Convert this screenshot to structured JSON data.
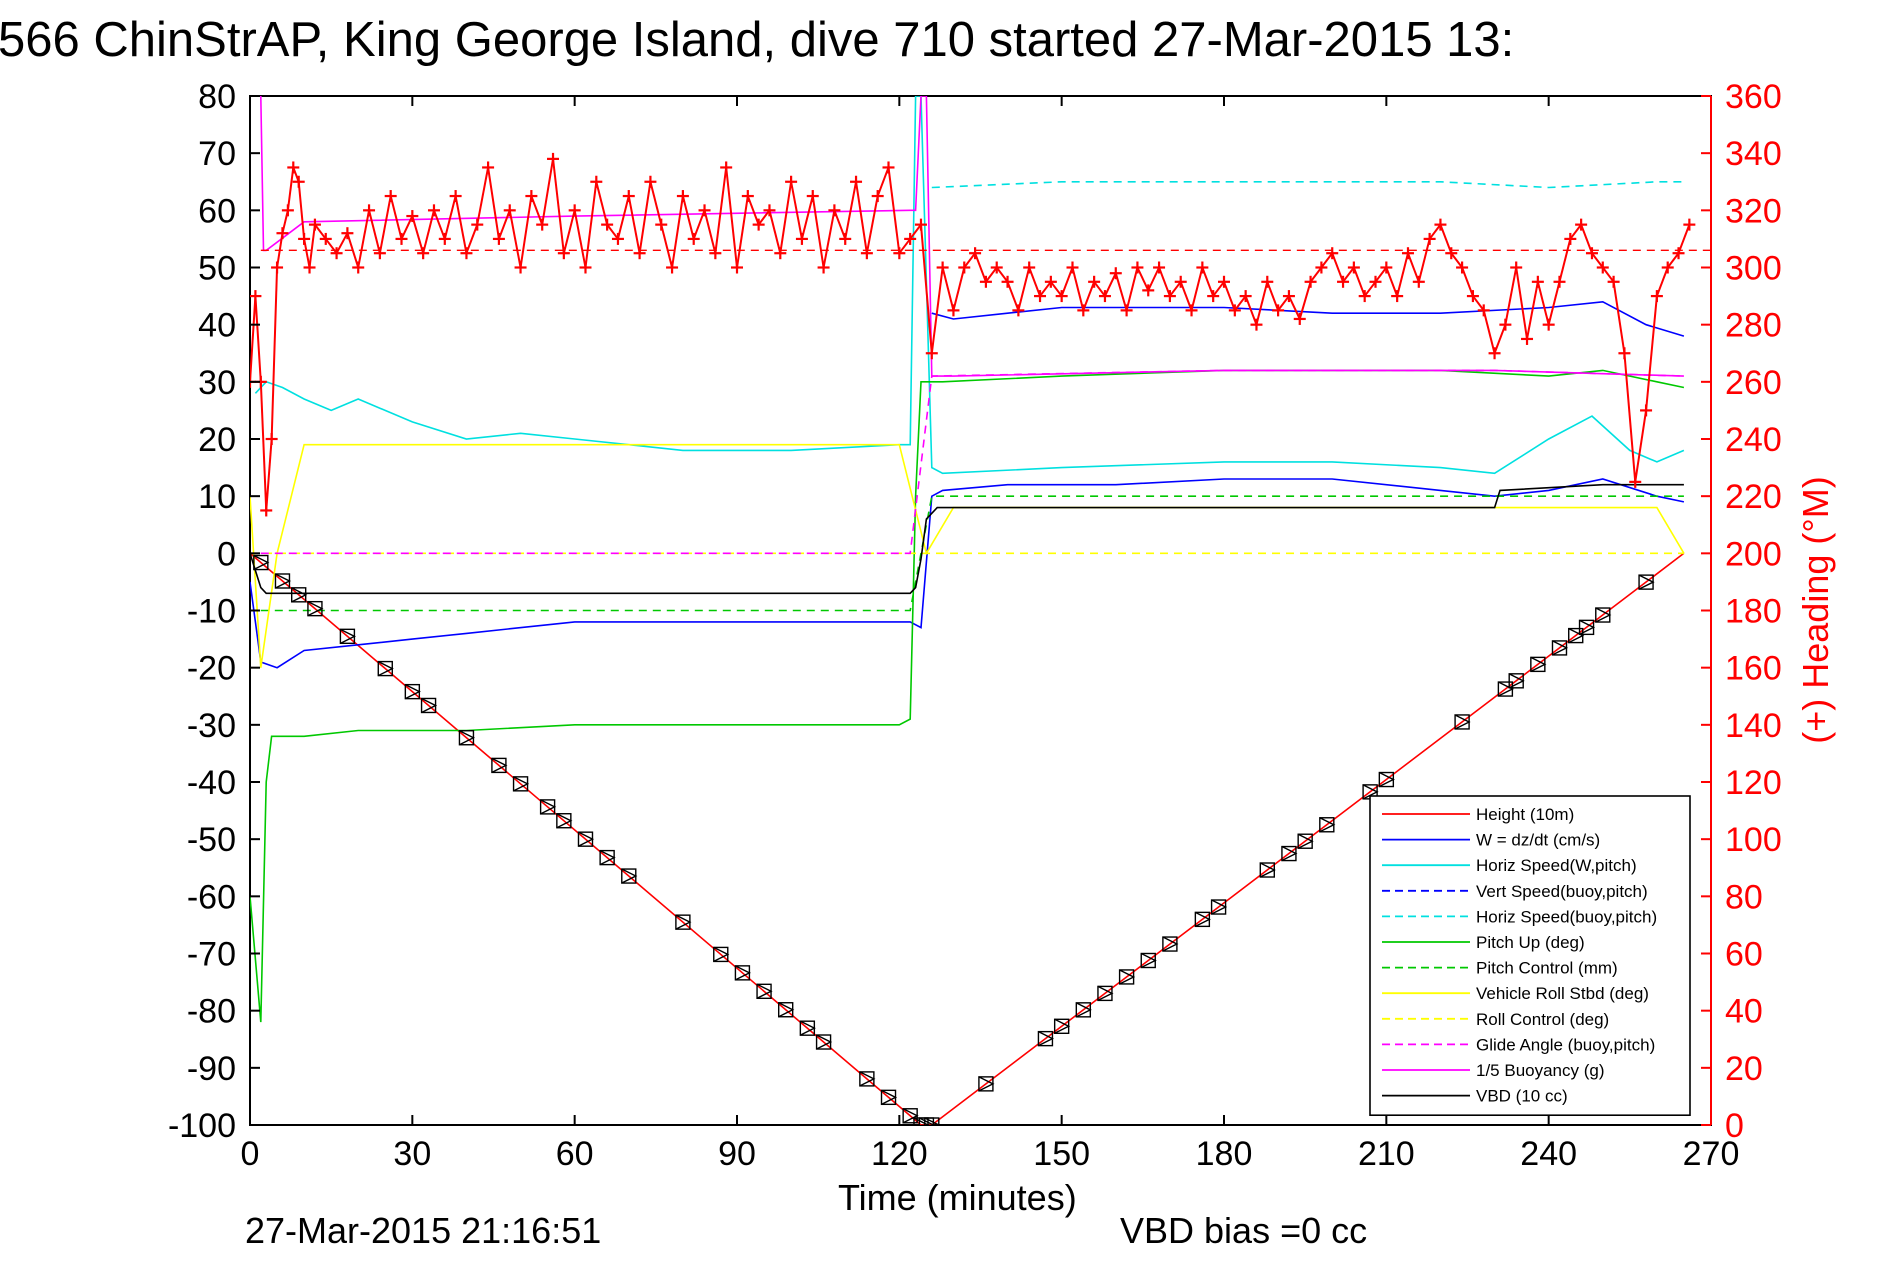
{
  "title": "566 ChinStrAP, King George Island, dive 710 started 27-Mar-2015 13:",
  "footer": {
    "timestamp": "27-Mar-2015 21:16:51",
    "vbd_bias": "VBD bias =0 cc"
  },
  "chart_data": {
    "type": "line",
    "title": "566 ChinStrAP, King George Island, dive 710 started 27-Mar-2015 13:",
    "xlabel": "Time (minutes)",
    "ylabel_right": "(+) Heading (°M)",
    "xlim": [
      0,
      270
    ],
    "ylim_left": [
      -100,
      80
    ],
    "ylim_right": [
      0,
      360
    ],
    "x_ticks": [
      "0",
      "30",
      "60",
      "90",
      "120",
      "150",
      "180",
      "210",
      "240",
      "270"
    ],
    "y_ticks_left": [
      "80",
      "70",
      "60",
      "50",
      "40",
      "30",
      "20",
      "10",
      "0",
      "-10",
      "-20",
      "-30",
      "-40",
      "-50",
      "-60",
      "-70",
      "-80",
      "-90",
      "-100"
    ],
    "y_ticks_right": [
      "360",
      "340",
      "320",
      "300",
      "280",
      "260",
      "240",
      "220",
      "200",
      "180",
      "160",
      "140",
      "120",
      "100",
      "80",
      "60",
      "40",
      "20",
      "0"
    ],
    "grid": false,
    "legend_position": "bottom-right",
    "series": [
      {
        "name": "Height (10m)",
        "color": "#ff0000",
        "style": "solid",
        "axis": "left",
        "x": [
          0,
          124,
          126,
          265
        ],
        "y": [
          0,
          -100,
          -100,
          0
        ]
      },
      {
        "name": "W = dz/dt (cm/s)",
        "color": "#0000ff",
        "style": "solid",
        "axis": "left",
        "x": [
          0,
          2,
          5,
          10,
          20,
          30,
          40,
          60,
          90,
          120,
          122,
          124,
          126,
          128,
          140,
          160,
          180,
          200,
          220,
          230,
          240,
          250,
          260,
          265
        ],
        "y": [
          -5,
          -19,
          -20,
          -17,
          -16,
          -15,
          -14,
          -12,
          -12,
          -12,
          -12,
          -13,
          10,
          11,
          12,
          12,
          13,
          13,
          11,
          10,
          11,
          13,
          10,
          9
        ]
      },
      {
        "name": "W = dz/dt (cm/s)",
        "color": "#0000ff",
        "style": "solid",
        "axis": "left",
        "x": [
          126,
          130,
          140,
          150,
          160,
          180,
          200,
          220,
          240,
          250,
          258,
          265
        ],
        "y": [
          42,
          41,
          42,
          43,
          43,
          43,
          42,
          42,
          43,
          44,
          40,
          38
        ]
      },
      {
        "name": "Horiz Speed(W,pitch)",
        "color": "#00e0e0",
        "style": "solid",
        "axis": "left",
        "x": [
          1,
          3,
          6,
          10,
          15,
          20,
          30,
          40,
          50,
          60,
          80,
          100,
          120,
          122,
          123,
          124,
          126,
          128,
          150,
          180,
          200,
          220,
          230,
          240,
          248,
          255,
          260,
          265
        ],
        "y": [
          28,
          30,
          29,
          27,
          25,
          27,
          23,
          20,
          21,
          20,
          18,
          18,
          19,
          19,
          80,
          80,
          15,
          14,
          15,
          16,
          16,
          15,
          14,
          20,
          24,
          18,
          16,
          18
        ]
      },
      {
        "name": "Vert Speed(buoy,pitch)",
        "color": "#0000ff",
        "style": "dashed",
        "axis": "left",
        "x": [],
        "y": []
      },
      {
        "name": "Horiz Speed(buoy,pitch)",
        "color": "#00e0e0",
        "style": "dashed",
        "axis": "left",
        "x": [
          126,
          150,
          180,
          200,
          220,
          240,
          260,
          265
        ],
        "y": [
          64,
          65,
          65,
          65,
          65,
          64,
          65,
          65
        ]
      },
      {
        "name": "Pitch Up (deg)",
        "color": "#00c800",
        "style": "solid",
        "axis": "left",
        "x": [
          0,
          2,
          3,
          4,
          5,
          10,
          20,
          40,
          60,
          90,
          120,
          122,
          123,
          124,
          126,
          128,
          150,
          180,
          200,
          220,
          240,
          250,
          260,
          265
        ],
        "y": [
          -60,
          -82,
          -40,
          -32,
          -32,
          -32,
          -31,
          -31,
          -30,
          -30,
          -30,
          -29,
          10,
          30,
          30,
          30,
          31,
          32,
          32,
          32,
          31,
          32,
          30,
          29
        ]
      },
      {
        "name": "Pitch Control (mm)",
        "color": "#00c800",
        "style": "dashed",
        "axis": "left",
        "x": [
          2,
          10,
          60,
          122,
          126,
          180,
          230,
          265
        ],
        "y": [
          -10,
          -10,
          -10,
          -10,
          10,
          10,
          10,
          10
        ]
      },
      {
        "name": "Vehicle Roll Stbd (deg)",
        "color": "#ffff00",
        "style": "solid",
        "axis": "left",
        "x": [
          0,
          2,
          5,
          10,
          20,
          40,
          60,
          80,
          100,
          120,
          125,
          130,
          150,
          180,
          200,
          220,
          240,
          260,
          265
        ],
        "y": [
          10,
          -20,
          0,
          19,
          19,
          19,
          19,
          19,
          19,
          19,
          0,
          8,
          8,
          8,
          8,
          8,
          8,
          8,
          0
        ]
      },
      {
        "name": "Roll Control (deg)",
        "color": "#ffff00",
        "style": "dashed",
        "axis": "left",
        "x": [
          0,
          2,
          10,
          60,
          120,
          126,
          180,
          224,
          230,
          250,
          265
        ],
        "y": [
          0,
          0,
          0,
          0,
          0,
          0,
          0,
          0,
          0,
          0,
          0
        ]
      },
      {
        "name": "Glide Angle (buoy,pitch)",
        "color": "#ff00ff",
        "style": "dashed",
        "axis": "left",
        "x": [
          2,
          60,
          122,
          126,
          180,
          230,
          265
        ],
        "y": [
          0,
          0,
          0,
          31,
          32,
          32,
          31
        ]
      },
      {
        "name": "1/5 Buoyancy (g)",
        "color": "#ff00ff",
        "style": "solid",
        "axis": "left",
        "x": [
          2,
          2.5,
          3,
          10,
          60,
          122,
          123,
          124,
          125,
          126,
          130,
          180,
          230,
          265
        ],
        "y": [
          80,
          53,
          53,
          58,
          59,
          60,
          60,
          80,
          80,
          31,
          31,
          32,
          32,
          31
        ]
      },
      {
        "name": "VBD (10 cc)",
        "color": "#000000",
        "style": "solid",
        "axis": "left",
        "x": [
          0,
          1,
          2,
          3,
          10,
          60,
          120,
          122,
          123,
          124,
          125,
          126,
          127,
          128,
          180,
          220,
          230,
          231,
          250,
          265
        ],
        "y": [
          0,
          -3,
          -6,
          -7,
          -7,
          -7,
          -7,
          -7,
          -6,
          -1,
          6,
          7,
          8,
          8,
          8,
          8,
          8,
          11,
          12,
          12
        ]
      },
      {
        "name": "Heading",
        "color": "#ff0000",
        "style": "plus-markers",
        "axis": "right",
        "x": [
          0,
          1,
          2,
          3,
          4,
          5,
          6,
          7,
          8,
          9,
          10,
          11,
          12,
          14,
          16,
          18,
          20,
          22,
          24,
          26,
          28,
          30,
          32,
          34,
          36,
          38,
          40,
          42,
          44,
          46,
          48,
          50,
          52,
          54,
          56,
          58,
          60,
          62,
          64,
          66,
          68,
          70,
          72,
          74,
          76,
          78,
          80,
          82,
          84,
          86,
          88,
          90,
          92,
          94,
          96,
          98,
          100,
          102,
          104,
          106,
          108,
          110,
          112,
          114,
          116,
          118,
          120,
          122,
          124,
          126,
          128,
          130,
          132,
          134,
          136,
          138,
          140,
          142,
          144,
          146,
          148,
          150,
          152,
          154,
          156,
          158,
          160,
          162,
          164,
          166,
          168,
          170,
          172,
          174,
          176,
          178,
          180,
          182,
          184,
          186,
          188,
          190,
          192,
          194,
          196,
          198,
          200,
          202,
          204,
          206,
          208,
          210,
          212,
          214,
          216,
          218,
          220,
          222,
          224,
          226,
          228,
          230,
          232,
          234,
          236,
          238,
          240,
          242,
          244,
          246,
          248,
          250,
          252,
          254,
          256,
          258,
          260,
          262,
          264,
          266
        ],
        "y": [
          260,
          290,
          260,
          215,
          240,
          300,
          312,
          320,
          335,
          330,
          310,
          300,
          315,
          310,
          305,
          312,
          300,
          320,
          305,
          325,
          310,
          318,
          305,
          320,
          310,
          325,
          305,
          315,
          335,
          310,
          320,
          300,
          325,
          315,
          338,
          305,
          320,
          300,
          330,
          315,
          310,
          325,
          305,
          330,
          315,
          300,
          325,
          310,
          320,
          305,
          335,
          300,
          325,
          315,
          320,
          305,
          330,
          310,
          325,
          300,
          320,
          310,
          330,
          305,
          325,
          335,
          305,
          310,
          315,
          270,
          300,
          285,
          300,
          305,
          295,
          300,
          295,
          285,
          300,
          290,
          295,
          290,
          300,
          285,
          295,
          290,
          298,
          285,
          300,
          292,
          300,
          290,
          295,
          285,
          300,
          290,
          295,
          285,
          290,
          280,
          295,
          285,
          290,
          282,
          295,
          300,
          305,
          295,
          300,
          290,
          295,
          300,
          290,
          305,
          295,
          310,
          315,
          305,
          300,
          290,
          285,
          270,
          280,
          300,
          275,
          295,
          280,
          295,
          310,
          315,
          305,
          300,
          295,
          270,
          225,
          250,
          290,
          300,
          305,
          315
        ]
      }
    ]
  },
  "legend": {
    "items": [
      {
        "label": "Height (10m)",
        "color": "#ff0000",
        "style": "solid"
      },
      {
        "label": "W = dz/dt (cm/s)",
        "color": "#0000ff",
        "style": "solid"
      },
      {
        "label": "Horiz Speed(W,pitch)",
        "color": "#00e0e0",
        "style": "solid"
      },
      {
        "label": "Vert Speed(buoy,pitch)",
        "color": "#0000ff",
        "style": "dashed"
      },
      {
        "label": "Horiz Speed(buoy,pitch)",
        "color": "#00e0e0",
        "style": "dashed"
      },
      {
        "label": "Pitch Up (deg)",
        "color": "#00c800",
        "style": "solid"
      },
      {
        "label": "Pitch Control (mm)",
        "color": "#00c800",
        "style": "dashed"
      },
      {
        "label": "Vehicle Roll Stbd (deg)",
        "color": "#ffff00",
        "style": "solid"
      },
      {
        "label": "Roll Control (deg)",
        "color": "#ffff00",
        "style": "dashed"
      },
      {
        "label": "Glide Angle (buoy,pitch)",
        "color": "#ff00ff",
        "style": "dashed"
      },
      {
        "label": "1/5 Buoyancy (g)",
        "color": "#ff00ff",
        "style": "solid"
      },
      {
        "label": "VBD (10 cc)",
        "color": "#000000",
        "style": "solid"
      }
    ]
  },
  "depth_markers": {
    "style": "triangle-box",
    "x": [
      2,
      6,
      9,
      12,
      18,
      25,
      30,
      33,
      40,
      46,
      50,
      55,
      58,
      62,
      66,
      70,
      80,
      87,
      91,
      95,
      99,
      103,
      106,
      114,
      118,
      122,
      124,
      125,
      126,
      136,
      147,
      150,
      154,
      158,
      162,
      166,
      170,
      176,
      179,
      188,
      192,
      195,
      199,
      207,
      210,
      224,
      232,
      234,
      238,
      242,
      245,
      247,
      250,
      258
    ]
  }
}
